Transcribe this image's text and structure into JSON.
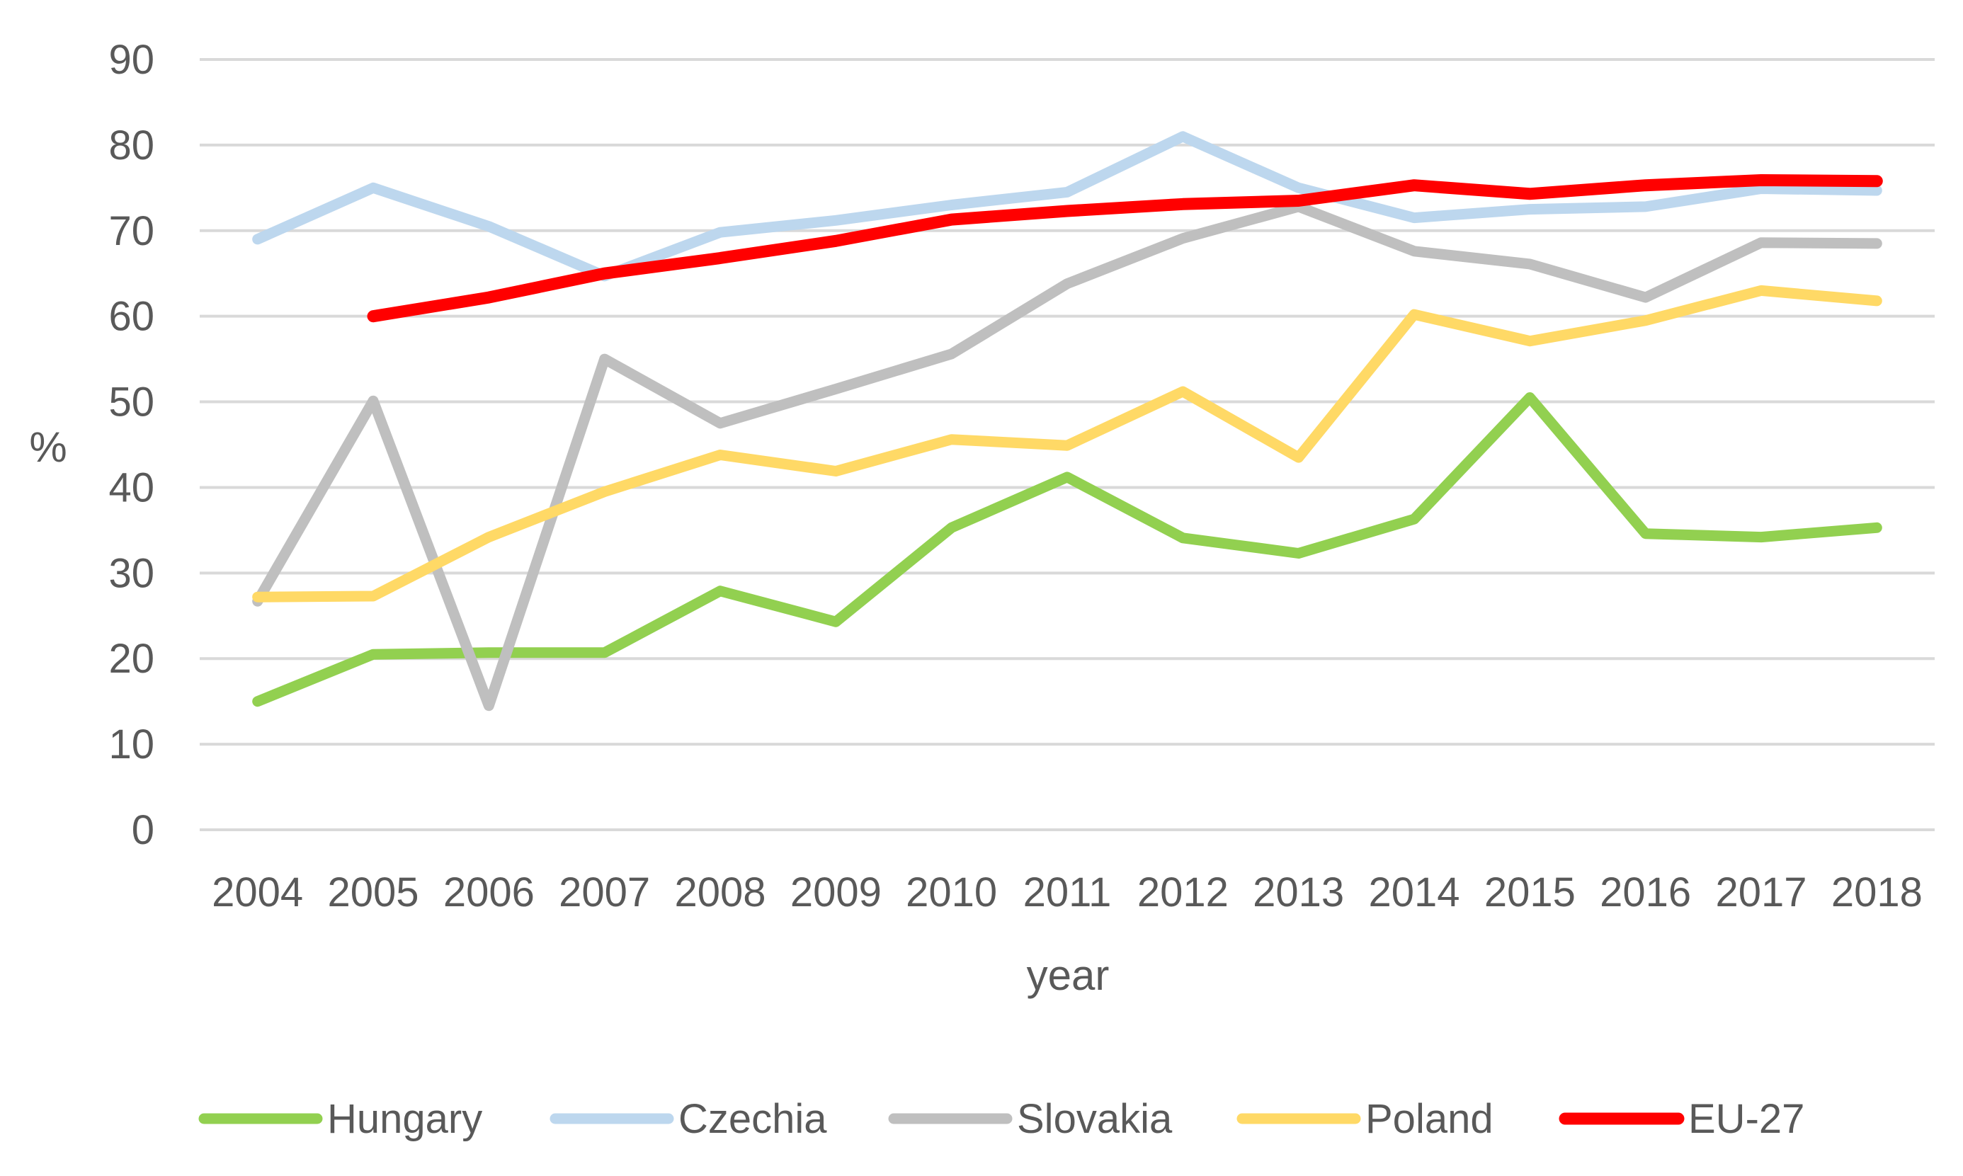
{
  "chart_data": {
    "type": "line",
    "title": "",
    "xlabel": "year",
    "ylabel": "%",
    "ylim": [
      0,
      90
    ],
    "y_ticks": [
      "0",
      "10",
      "20",
      "30",
      "40",
      "50",
      "60",
      "70",
      "80",
      "90"
    ],
    "categories": [
      "2004",
      "2005",
      "2006",
      "2007",
      "2008",
      "2009",
      "2010",
      "2011",
      "2012",
      "2013",
      "2014",
      "2015",
      "2016",
      "2017",
      "2018"
    ],
    "grid": true,
    "legend_position": "bottom",
    "series": [
      {
        "name": "Hungary",
        "color": "#92D050",
        "values": [
          15.0,
          20.5,
          20.7,
          20.7,
          27.9,
          24.3,
          35.3,
          41.2,
          34.1,
          32.3,
          36.3,
          50.5,
          34.6,
          34.2,
          35.3
        ]
      },
      {
        "name": "Czechia",
        "color": "#BDD7EE",
        "values": [
          69.0,
          75.0,
          70.5,
          64.7,
          69.8,
          71.2,
          73.0,
          74.5,
          81.0,
          75.0,
          71.5,
          72.5,
          72.8,
          74.9,
          74.7
        ]
      },
      {
        "name": "Slovakia",
        "color": "#BFBFBF",
        "values": [
          26.7,
          50.1,
          14.5,
          55.0,
          47.5,
          51.5,
          55.6,
          63.8,
          69.1,
          72.8,
          67.6,
          66.1,
          62.2,
          68.6,
          68.5
        ]
      },
      {
        "name": "Poland",
        "color": "#FFD966",
        "values": [
          27.2,
          27.3,
          34.2,
          39.5,
          43.8,
          41.9,
          45.6,
          44.9,
          51.2,
          43.5,
          60.2,
          57.1,
          59.5,
          63.0,
          61.8
        ]
      },
      {
        "name": "EU-27",
        "color": "#FF0000",
        "values": [
          null,
          60.0,
          62.2,
          65.0,
          66.8,
          68.8,
          71.3,
          72.3,
          73.1,
          73.5,
          75.3,
          74.3,
          75.3,
          75.9,
          75.8
        ]
      }
    ]
  }
}
